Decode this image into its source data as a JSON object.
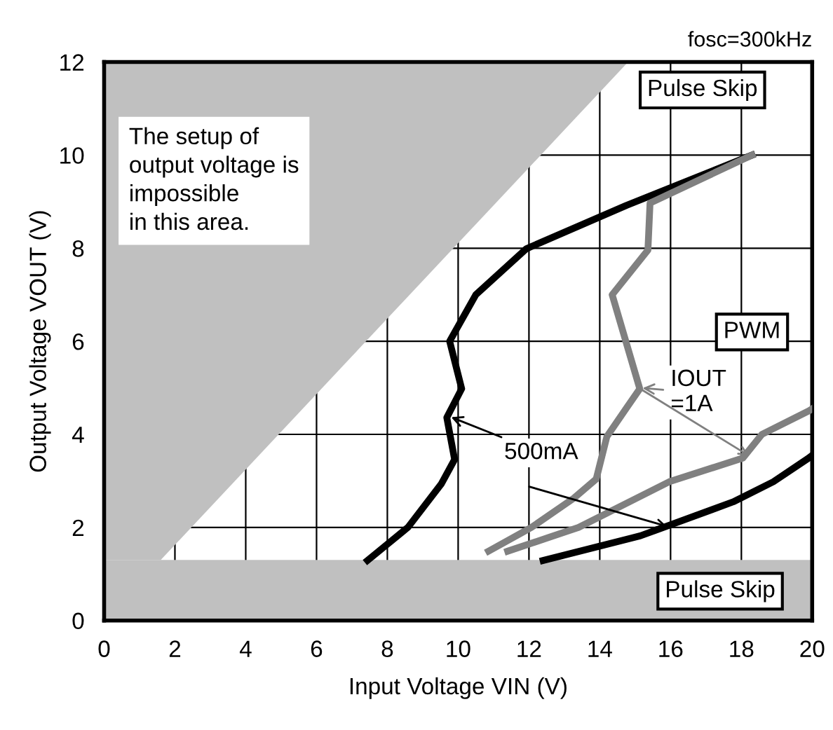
{
  "chart_data": {
    "type": "line",
    "title": "fosc=300kHz",
    "xlabel": "Input Voltage VIN (V)",
    "ylabel": "Output Voltage VOUT (V)",
    "xlim": [
      0,
      20
    ],
    "ylim": [
      0,
      12
    ],
    "xticks": [
      0,
      2,
      4,
      6,
      8,
      10,
      12,
      14,
      16,
      18,
      20
    ],
    "yticks": [
      0,
      2,
      4,
      6,
      8,
      10,
      12
    ],
    "grid": true,
    "legend": false,
    "marker": "none",
    "line_style": "solid",
    "series": [
      {
        "type": "area",
        "color": "#c0c0c0",
        "x": [
          0,
          1.6,
          14.8,
          0
        ],
        "values": [
          1.3,
          1.3,
          12,
          12
        ]
      },
      {
        "color": "#000000",
        "x": [
          7.44,
          8.58,
          9.52,
          9.9,
          9.68,
          10.1,
          9.76,
          10.5,
          11.93,
          14.75,
          18.3
        ],
        "values": [
          1.29,
          2.0,
          2.93,
          3.46,
          4.36,
          4.98,
          6.0,
          7.0,
          7.99,
          8.92,
          10.0
        ]
      },
      {
        "color": "#000000",
        "x": [
          12.4,
          15.15,
          17.77,
          18.9,
          19.9,
          20
        ],
        "values": [
          1.29,
          1.82,
          2.55,
          2.98,
          3.49,
          3.55
        ]
      },
      {
        "color": "#808080",
        "x": [
          10.86,
          12.07,
          13.27,
          13.9,
          14.2,
          14.75,
          15.13,
          14.35,
          15.36,
          15.42,
          18.3
        ],
        "values": [
          1.49,
          2.0,
          2.63,
          3.04,
          3.95,
          4.56,
          4.98,
          7.0,
          7.96,
          8.97,
          10.0
        ]
      },
      {
        "color": "#808080",
        "x": [
          11.4,
          13.4,
          15.96,
          18.04,
          18.58,
          19.92,
          20
        ],
        "values": [
          1.49,
          2.0,
          2.98,
          3.49,
          4.0,
          4.51,
          4.55
        ]
      }
    ],
    "bands": [
      {
        "axis": "y",
        "from": 0,
        "to": 1.3,
        "color": "#c0c0c0"
      }
    ],
    "annotations": [
      "The setup of\noutput voltage is\nimpossible\nin this area.",
      "Pulse Skip",
      "PWM",
      "Pulse Skip",
      {
        "text": "500mA",
        "x": 9.7,
        "y": 4.4
      },
      {
        "text": "IOUT\n=1A",
        "x": 15.1,
        "y": 5.0
      }
    ]
  }
}
